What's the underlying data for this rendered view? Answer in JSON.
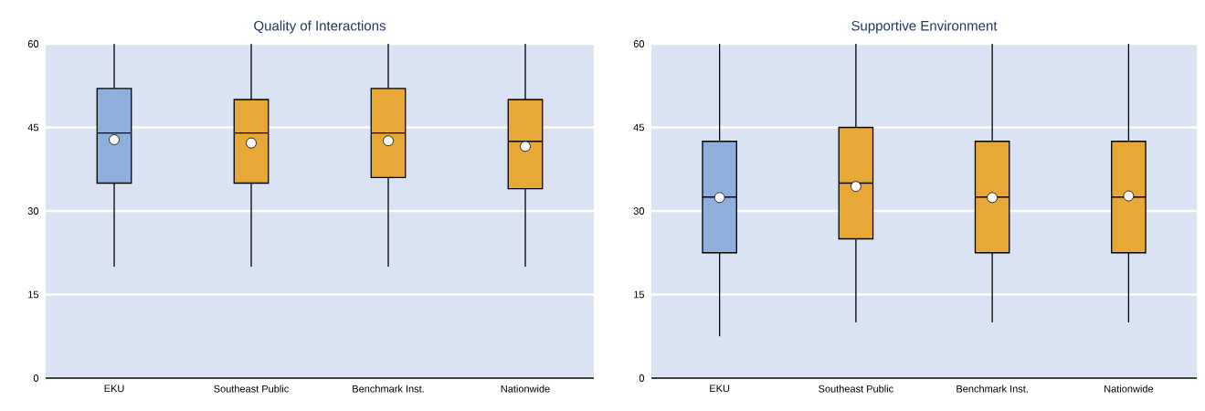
{
  "chart_data": [
    {
      "type": "box",
      "title": "Quality of Interactions",
      "categories": [
        "EKU",
        "Southeast Public",
        "Benchmark Inst.",
        "Nationwide"
      ],
      "boxes": [
        {
          "low": 20,
          "q1": 35,
          "median": 44,
          "q3": 52,
          "high": 60,
          "mean": 42.8
        },
        {
          "low": 20,
          "q1": 35,
          "median": 44,
          "q3": 50,
          "high": 60,
          "mean": 42.2
        },
        {
          "low": 20,
          "q1": 36,
          "median": 44,
          "q3": 52,
          "high": 60,
          "mean": 42.6
        },
        {
          "low": 20,
          "q1": 34,
          "median": 42.5,
          "q3": 50,
          "high": 60,
          "mean": 41.6
        }
      ],
      "colors": [
        "#8eaedb",
        "#e8a838",
        "#e8a838",
        "#e8a838"
      ],
      "ylim": [
        0,
        60
      ],
      "yticks": [
        0,
        15,
        30,
        45,
        60
      ],
      "grid": "y"
    },
    {
      "type": "box",
      "title": "Supportive Environment",
      "categories": [
        "EKU",
        "Southeast Public",
        "Benchmark Inst.",
        "Nationwide"
      ],
      "boxes": [
        {
          "low": 7.5,
          "q1": 22.5,
          "median": 32.5,
          "q3": 42.5,
          "high": 60,
          "mean": 32.4
        },
        {
          "low": 10,
          "q1": 25,
          "median": 35,
          "q3": 45,
          "high": 60,
          "mean": 34.4
        },
        {
          "low": 10,
          "q1": 22.5,
          "median": 32.5,
          "q3": 42.5,
          "high": 60,
          "mean": 32.4
        },
        {
          "low": 10,
          "q1": 22.5,
          "median": 32.5,
          "q3": 42.5,
          "high": 60,
          "mean": 32.7
        }
      ],
      "colors": [
        "#8eaedb",
        "#e8a838",
        "#e8a838",
        "#e8a838"
      ],
      "ylim": [
        0,
        60
      ],
      "yticks": [
        0,
        15,
        30,
        45,
        60
      ],
      "grid": "y"
    }
  ]
}
